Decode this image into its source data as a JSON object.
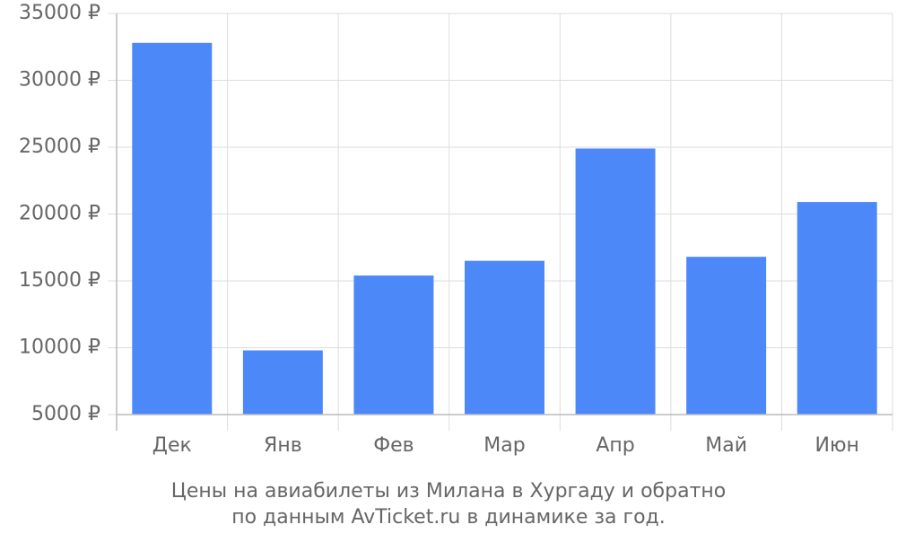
{
  "chart_data": {
    "type": "bar",
    "title": "Цены на авиабилеты из Милана в Хургаду и обратно",
    "subtitle": "по данным AvTicket.ru в динамике за год.",
    "categories": [
      "Дек",
      "Янв",
      "Фев",
      "Мар",
      "Апр",
      "Май",
      "Июн"
    ],
    "values": [
      32800,
      9800,
      15400,
      16500,
      24900,
      16800,
      20900
    ],
    "color": "#4d88f9",
    "ylim": [
      5000,
      35000
    ],
    "yticks": [
      {
        "value": 5000,
        "label": "5000 ₽"
      },
      {
        "value": 10000,
        "label": "10000 ₽"
      },
      {
        "value": 15000,
        "label": "15000 ₽"
      },
      {
        "value": 20000,
        "label": "20000 ₽"
      },
      {
        "value": 25000,
        "label": "25000 ₽"
      },
      {
        "value": 30000,
        "label": "30000 ₽"
      },
      {
        "value": 35000,
        "label": "35000 ₽"
      }
    ],
    "grid": true
  }
}
